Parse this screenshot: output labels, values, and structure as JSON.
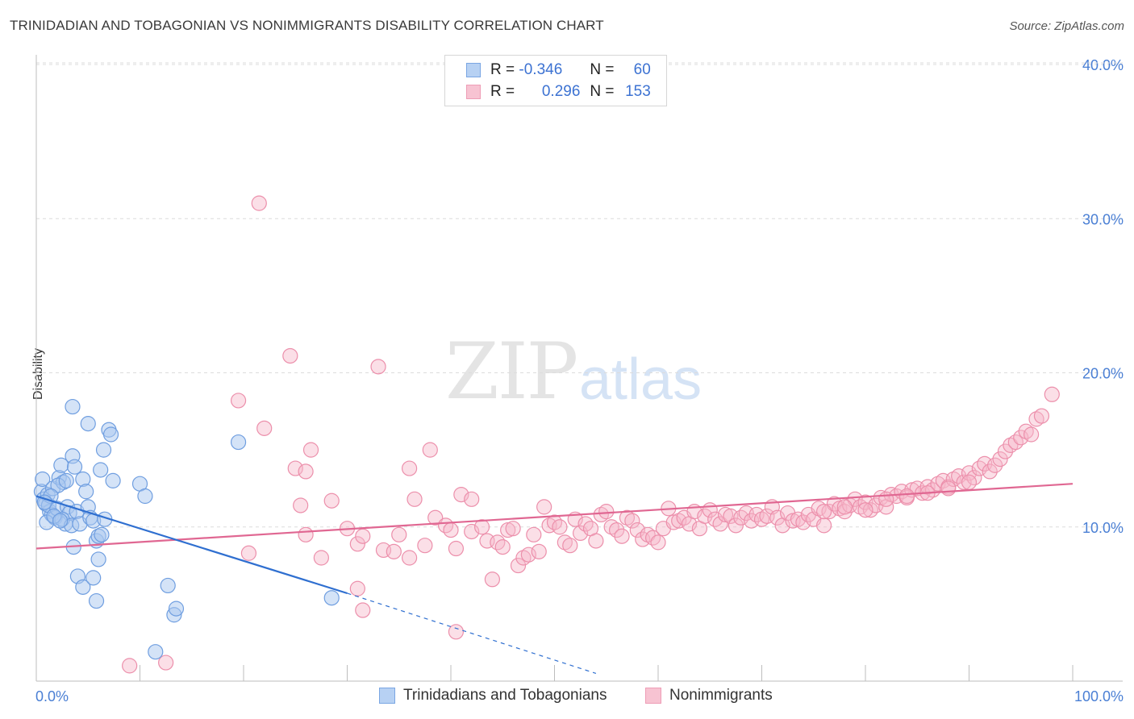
{
  "title": "TRINIDADIAN AND TOBAGONIAN VS NONIMMIGRANTS DISABILITY CORRELATION CHART",
  "source": "Source: ZipAtlas.com",
  "watermark": {
    "zip": "ZIP",
    "atlas": "atlas"
  },
  "legend": {
    "r_label": "R =",
    "n_label": "N =",
    "series1": {
      "r": "-0.346",
      "n": "60"
    },
    "series2": {
      "r": "0.296",
      "n": "153"
    }
  },
  "bottom_legend": {
    "series1": "Trinidadians and Tobagonians",
    "series2": "Nonimmigrants"
  },
  "colors": {
    "blue_fill": "#a9c7ef",
    "blue_stroke": "#6f9ee0",
    "blue_line": "#2f6fd0",
    "pink_fill": "#f6b7c9",
    "pink_stroke": "#ec8fab",
    "pink_line": "#e06792",
    "grid": "#dcdcdc",
    "tick_label": "#4a7fd4"
  },
  "chart_data": {
    "type": "scatter",
    "title": "TRINIDADIAN AND TOBAGONIAN VS NONIMMIGRANTS DISABILITY CORRELATION CHART",
    "xlabel": "",
    "ylabel": "Disability",
    "xlim": [
      0,
      100
    ],
    "ylim": [
      0,
      40
    ],
    "x_tick_labels": [
      "0.0%",
      "100.0%"
    ],
    "y_ticks": [
      10,
      20,
      30,
      40
    ],
    "y_tick_labels": [
      "10.0%",
      "20.0%",
      "30.0%",
      "40.0%"
    ],
    "grid": true,
    "legend_position": "top-center",
    "series": [
      {
        "name": "Trinidadians and Tobagonians",
        "r": -0.346,
        "n": 60,
        "trend": {
          "x0": 0,
          "y0": 12.0,
          "x1": 30,
          "y1": 5.7,
          "dashed_to_x": 54,
          "dashed_to_y": 0.5
        },
        "points": [
          [
            0.5,
            12.3
          ],
          [
            0.7,
            11.8
          ],
          [
            0.9,
            11.5
          ],
          [
            1.1,
            12.1
          ],
          [
            0.6,
            13.1
          ],
          [
            1.3,
            11.0
          ],
          [
            1.5,
            10.8
          ],
          [
            1.2,
            11.4
          ],
          [
            1.6,
            12.5
          ],
          [
            1.8,
            10.6
          ],
          [
            2.0,
            11.2
          ],
          [
            2.2,
            13.2
          ],
          [
            2.4,
            14.0
          ],
          [
            2.6,
            12.9
          ],
          [
            2.8,
            10.2
          ],
          [
            3.0,
            11.3
          ],
          [
            3.2,
            10.9
          ],
          [
            2.5,
            10.5
          ],
          [
            2.1,
            12.7
          ],
          [
            3.5,
            14.6
          ],
          [
            3.7,
            13.9
          ],
          [
            3.4,
            10.1
          ],
          [
            3.9,
            11.0
          ],
          [
            4.2,
            10.2
          ],
          [
            3.6,
            8.7
          ],
          [
            4.5,
            13.1
          ],
          [
            4.8,
            12.3
          ],
          [
            5.0,
            11.3
          ],
          [
            5.2,
            10.6
          ],
          [
            5.5,
            10.4
          ],
          [
            5.8,
            9.1
          ],
          [
            6.0,
            9.4
          ],
          [
            6.3,
            9.5
          ],
          [
            6.6,
            10.5
          ],
          [
            6.2,
            13.7
          ],
          [
            6.5,
            15.0
          ],
          [
            7.0,
            16.3
          ],
          [
            7.2,
            16.0
          ],
          [
            7.4,
            13.0
          ],
          [
            5.0,
            16.7
          ],
          [
            3.5,
            17.8
          ],
          [
            4.0,
            6.8
          ],
          [
            4.5,
            6.1
          ],
          [
            5.5,
            6.7
          ],
          [
            5.8,
            5.2
          ],
          [
            6.0,
            7.9
          ],
          [
            10.0,
            12.8
          ],
          [
            10.5,
            12.0
          ],
          [
            12.7,
            6.2
          ],
          [
            13.3,
            4.3
          ],
          [
            13.5,
            4.7
          ],
          [
            11.5,
            1.9
          ],
          [
            19.5,
            15.5
          ],
          [
            28.5,
            5.4
          ],
          [
            1.0,
            10.3
          ],
          [
            1.4,
            12.0
          ],
          [
            2.9,
            13.0
          ],
          [
            1.7,
            10.7
          ],
          [
            0.8,
            11.6
          ],
          [
            2.3,
            10.4
          ]
        ]
      },
      {
        "name": "Nonimmigrants",
        "r": 0.296,
        "n": 153,
        "trend": {
          "x0": 0,
          "y0": 8.6,
          "x1": 100,
          "y1": 12.8
        },
        "points": [
          [
            21.5,
            31.0
          ],
          [
            24.5,
            21.1
          ],
          [
            33.0,
            20.4
          ],
          [
            19.5,
            18.2
          ],
          [
            22.0,
            16.4
          ],
          [
            26.5,
            15.0
          ],
          [
            38.0,
            15.0
          ],
          [
            25.0,
            13.8
          ],
          [
            26.0,
            13.6
          ],
          [
            36.0,
            13.8
          ],
          [
            25.5,
            11.4
          ],
          [
            28.5,
            11.7
          ],
          [
            36.5,
            11.8
          ],
          [
            41.0,
            12.1
          ],
          [
            42.0,
            11.8
          ],
          [
            26.0,
            9.5
          ],
          [
            27.5,
            8.0
          ],
          [
            30.0,
            9.9
          ],
          [
            31.0,
            8.9
          ],
          [
            31.5,
            9.4
          ],
          [
            33.5,
            8.5
          ],
          [
            34.5,
            8.4
          ],
          [
            35.0,
            9.5
          ],
          [
            36.0,
            8.0
          ],
          [
            37.5,
            8.8
          ],
          [
            38.5,
            10.6
          ],
          [
            39.5,
            10.1
          ],
          [
            40.0,
            9.8
          ],
          [
            40.5,
            8.6
          ],
          [
            42.0,
            9.7
          ],
          [
            43.0,
            10.0
          ],
          [
            43.5,
            9.1
          ],
          [
            44.5,
            9.0
          ],
          [
            45.0,
            8.7
          ],
          [
            45.5,
            9.8
          ],
          [
            46.0,
            9.9
          ],
          [
            46.5,
            7.5
          ],
          [
            47.0,
            8.0
          ],
          [
            47.5,
            8.2
          ],
          [
            48.5,
            8.4
          ],
          [
            48.0,
            9.5
          ],
          [
            49.0,
            11.3
          ],
          [
            49.5,
            10.1
          ],
          [
            50.0,
            10.3
          ],
          [
            50.5,
            10.0
          ],
          [
            51.0,
            9.0
          ],
          [
            51.5,
            8.8
          ],
          [
            52.0,
            10.5
          ],
          [
            52.5,
            9.6
          ],
          [
            53.0,
            10.2
          ],
          [
            53.5,
            9.9
          ],
          [
            54.0,
            9.1
          ],
          [
            54.5,
            10.8
          ],
          [
            55.0,
            11.0
          ],
          [
            55.5,
            10.0
          ],
          [
            56.0,
            9.8
          ],
          [
            56.5,
            9.4
          ],
          [
            57.0,
            10.6
          ],
          [
            57.5,
            10.4
          ],
          [
            58.0,
            9.8
          ],
          [
            58.5,
            9.2
          ],
          [
            59.0,
            9.5
          ],
          [
            59.5,
            9.3
          ],
          [
            60.0,
            9.0
          ],
          [
            60.5,
            9.9
          ],
          [
            61.0,
            11.2
          ],
          [
            61.5,
            10.3
          ],
          [
            62.0,
            10.4
          ],
          [
            62.5,
            10.6
          ],
          [
            63.0,
            10.2
          ],
          [
            63.5,
            11.0
          ],
          [
            64.0,
            9.9
          ],
          [
            64.5,
            10.7
          ],
          [
            65.0,
            11.1
          ],
          [
            65.5,
            10.5
          ],
          [
            66.0,
            10.2
          ],
          [
            66.5,
            10.8
          ],
          [
            67.0,
            10.7
          ],
          [
            67.5,
            10.1
          ],
          [
            68.0,
            10.6
          ],
          [
            68.5,
            10.9
          ],
          [
            69.0,
            10.4
          ],
          [
            69.5,
            10.8
          ],
          [
            70.0,
            10.5
          ],
          [
            70.5,
            10.7
          ],
          [
            71.0,
            11.3
          ],
          [
            71.5,
            10.6
          ],
          [
            72.0,
            10.1
          ],
          [
            72.5,
            10.9
          ],
          [
            73.0,
            10.4
          ],
          [
            73.5,
            10.5
          ],
          [
            74.0,
            10.3
          ],
          [
            74.5,
            10.8
          ],
          [
            75.0,
            10.5
          ],
          [
            75.5,
            11.2
          ],
          [
            76.0,
            10.1
          ],
          [
            76.5,
            11.0
          ],
          [
            77.0,
            11.5
          ],
          [
            77.5,
            11.2
          ],
          [
            78.0,
            11.0
          ],
          [
            78.5,
            11.4
          ],
          [
            79.0,
            11.8
          ],
          [
            79.5,
            11.3
          ],
          [
            80.0,
            11.6
          ],
          [
            80.5,
            11.1
          ],
          [
            81.0,
            11.4
          ],
          [
            81.5,
            11.9
          ],
          [
            82.0,
            11.3
          ],
          [
            82.5,
            12.1
          ],
          [
            83.0,
            12.0
          ],
          [
            83.5,
            12.3
          ],
          [
            84.0,
            11.9
          ],
          [
            84.5,
            12.4
          ],
          [
            85.0,
            12.5
          ],
          [
            85.5,
            12.2
          ],
          [
            86.0,
            12.6
          ],
          [
            86.5,
            12.4
          ],
          [
            87.0,
            12.8
          ],
          [
            87.5,
            13.0
          ],
          [
            88.0,
            12.6
          ],
          [
            88.5,
            13.1
          ],
          [
            89.0,
            13.3
          ],
          [
            89.5,
            12.9
          ],
          [
            90.0,
            13.5
          ],
          [
            90.5,
            13.2
          ],
          [
            91.0,
            13.8
          ],
          [
            91.5,
            14.1
          ],
          [
            92.0,
            13.6
          ],
          [
            92.5,
            14.0
          ],
          [
            93.0,
            14.4
          ],
          [
            93.5,
            14.9
          ],
          [
            94.0,
            15.3
          ],
          [
            94.5,
            15.5
          ],
          [
            95.0,
            15.8
          ],
          [
            95.5,
            16.2
          ],
          [
            96.0,
            16.0
          ],
          [
            96.5,
            17.0
          ],
          [
            97.0,
            17.2
          ],
          [
            98.0,
            18.6
          ],
          [
            90.0,
            12.9
          ],
          [
            88.0,
            12.5
          ],
          [
            86.0,
            12.2
          ],
          [
            84.0,
            12.0
          ],
          [
            82.0,
            11.8
          ],
          [
            80.0,
            11.1
          ],
          [
            78.0,
            11.3
          ],
          [
            76.0,
            11.0
          ],
          [
            20.5,
            8.3
          ],
          [
            31.0,
            6.0
          ],
          [
            31.5,
            4.6
          ],
          [
            40.5,
            3.2
          ],
          [
            9.0,
            1.0
          ],
          [
            12.5,
            1.2
          ],
          [
            44.0,
            6.6
          ]
        ]
      }
    ]
  }
}
